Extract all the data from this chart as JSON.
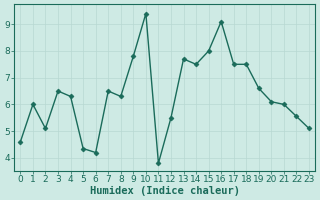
{
  "x": [
    0,
    1,
    2,
    3,
    4,
    5,
    6,
    7,
    8,
    9,
    10,
    11,
    12,
    13,
    14,
    15,
    16,
    17,
    18,
    19,
    20,
    21,
    22,
    23
  ],
  "y": [
    4.6,
    6.0,
    5.1,
    6.5,
    6.3,
    4.35,
    4.2,
    6.5,
    6.3,
    7.8,
    9.4,
    3.8,
    5.5,
    7.7,
    7.5,
    8.0,
    9.1,
    7.5,
    7.5,
    6.6,
    6.1,
    6.0,
    5.55,
    5.1
  ],
  "xlabel": "Humidex (Indice chaleur)",
  "xlim": [
    -0.5,
    23.5
  ],
  "ylim": [
    3.5,
    9.75
  ],
  "yticks": [
    4,
    5,
    6,
    7,
    8,
    9
  ],
  "xticks": [
    0,
    1,
    2,
    3,
    4,
    5,
    6,
    7,
    8,
    9,
    10,
    11,
    12,
    13,
    14,
    15,
    16,
    17,
    18,
    19,
    20,
    21,
    22,
    23
  ],
  "line_color": "#1a6b5a",
  "marker": "D",
  "marker_size": 2.5,
  "bg_color": "#ceeae4",
  "grid_color": "#b8d8d2",
  "font_color": "#1a6b5a",
  "tick_fontsize": 6.5,
  "xlabel_fontsize": 7.5,
  "linewidth": 1.0
}
